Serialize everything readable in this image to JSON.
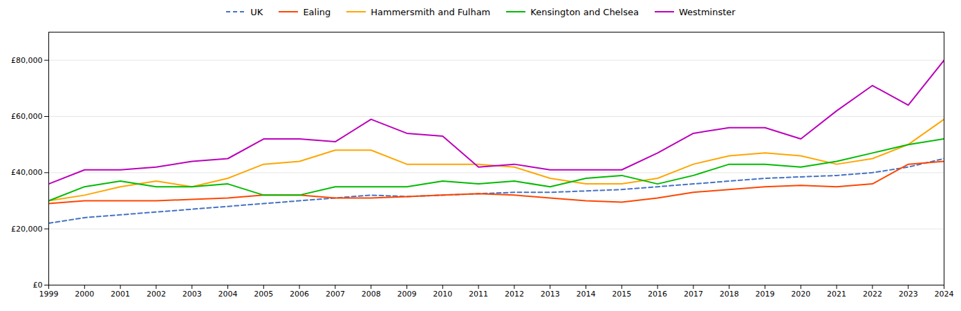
{
  "chart_data": {
    "type": "line",
    "x": [
      1999,
      2000,
      2001,
      2002,
      2003,
      2004,
      2005,
      2006,
      2007,
      2008,
      2009,
      2010,
      2011,
      2012,
      2013,
      2014,
      2015,
      2016,
      2017,
      2018,
      2019,
      2020,
      2021,
      2022,
      2023,
      2024
    ],
    "series": [
      {
        "name": "UK",
        "color": "#4472C4",
        "line_style": "dashed",
        "values": [
          22000,
          24000,
          25000,
          26000,
          27000,
          28000,
          29000,
          30000,
          31000,
          32000,
          31500,
          32000,
          32500,
          33000,
          33000,
          33500,
          34000,
          35000,
          36000,
          37000,
          38000,
          38500,
          39000,
          40000,
          42000,
          45000
        ]
      },
      {
        "name": "Ealing",
        "color": "#FF4500",
        "line_style": "solid",
        "values": [
          29000,
          30000,
          30000,
          30000,
          30500,
          31000,
          32000,
          32000,
          31000,
          31000,
          31500,
          32000,
          32500,
          32000,
          31000,
          30000,
          29500,
          31000,
          33000,
          34000,
          35000,
          35500,
          35000,
          36000,
          43000,
          44000
        ]
      },
      {
        "name": "Hammersmith and Fulham",
        "color": "#FFA500",
        "line_style": "solid",
        "values": [
          30000,
          32000,
          35000,
          37000,
          35000,
          38000,
          43000,
          44000,
          48000,
          48000,
          43000,
          43000,
          43000,
          42000,
          38000,
          36000,
          36000,
          38000,
          43000,
          46000,
          47000,
          46000,
          43000,
          45000,
          50000,
          59000
        ]
      },
      {
        "name": "Kensington and Chelsea",
        "color": "#00BB00",
        "line_style": "solid",
        "values": [
          30000,
          35000,
          37000,
          35000,
          35000,
          36000,
          32000,
          32000,
          35000,
          35000,
          35000,
          37000,
          36000,
          37000,
          35000,
          38000,
          39000,
          36000,
          39000,
          43000,
          43000,
          42000,
          44000,
          47000,
          50000,
          52000
        ]
      },
      {
        "name": "Westminster",
        "color": "#BB00BB",
        "line_style": "solid",
        "values": [
          36000,
          41000,
          41000,
          42000,
          44000,
          45000,
          52000,
          52000,
          51000,
          59000,
          54000,
          53000,
          42000,
          43000,
          41000,
          41000,
          41000,
          47000,
          54000,
          56000,
          56000,
          52000,
          62000,
          71000,
          64000,
          80000
        ]
      }
    ],
    "xlim": [
      1999,
      2024
    ],
    "xticks": [
      1999,
      2000,
      2001,
      2002,
      2003,
      2004,
      2005,
      2006,
      2007,
      2008,
      2009,
      2010,
      2011,
      2012,
      2013,
      2014,
      2015,
      2016,
      2017,
      2018,
      2019,
      2020,
      2021,
      2022,
      2023,
      2024
    ],
    "ylim": [
      0,
      90000
    ],
    "yticks": [
      {
        "value": 0,
        "label": "£0"
      },
      {
        "value": 20000,
        "label": "£20,000"
      },
      {
        "value": 40000,
        "label": "£40,000"
      },
      {
        "value": 60000,
        "label": "£60,000"
      },
      {
        "value": 80000,
        "label": "£80,000"
      }
    ],
    "grid": "y",
    "legend": "top"
  }
}
